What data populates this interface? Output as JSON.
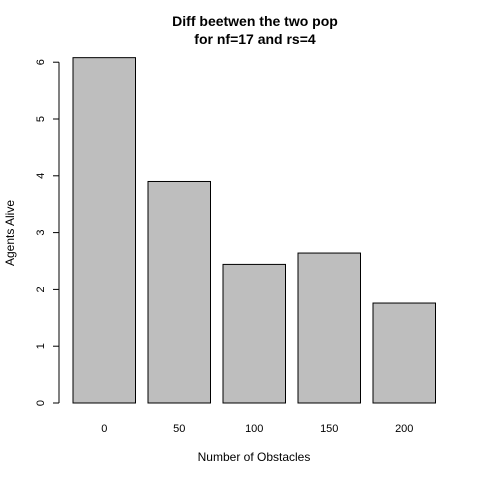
{
  "chart_data": {
    "type": "bar",
    "title": "Diff beetwen the two pop",
    "subtitle": "for nf=17 and rs=4",
    "xlabel": "Number of Obstacles",
    "ylabel": "Agents Alive",
    "categories": [
      "0",
      "50",
      "100",
      "150",
      "200"
    ],
    "values": [
      6.08,
      3.9,
      2.44,
      2.64,
      1.76
    ],
    "ylim": [
      0,
      6.2
    ],
    "yticks": [
      0,
      1,
      2,
      3,
      4,
      5,
      6
    ],
    "ytick_labels": [
      "0",
      "1",
      "2",
      "3",
      "4",
      "5",
      "6"
    ],
    "grid": false,
    "legend": "none",
    "bar_color": "#bebebe",
    "bar_border_color": "#000000"
  }
}
